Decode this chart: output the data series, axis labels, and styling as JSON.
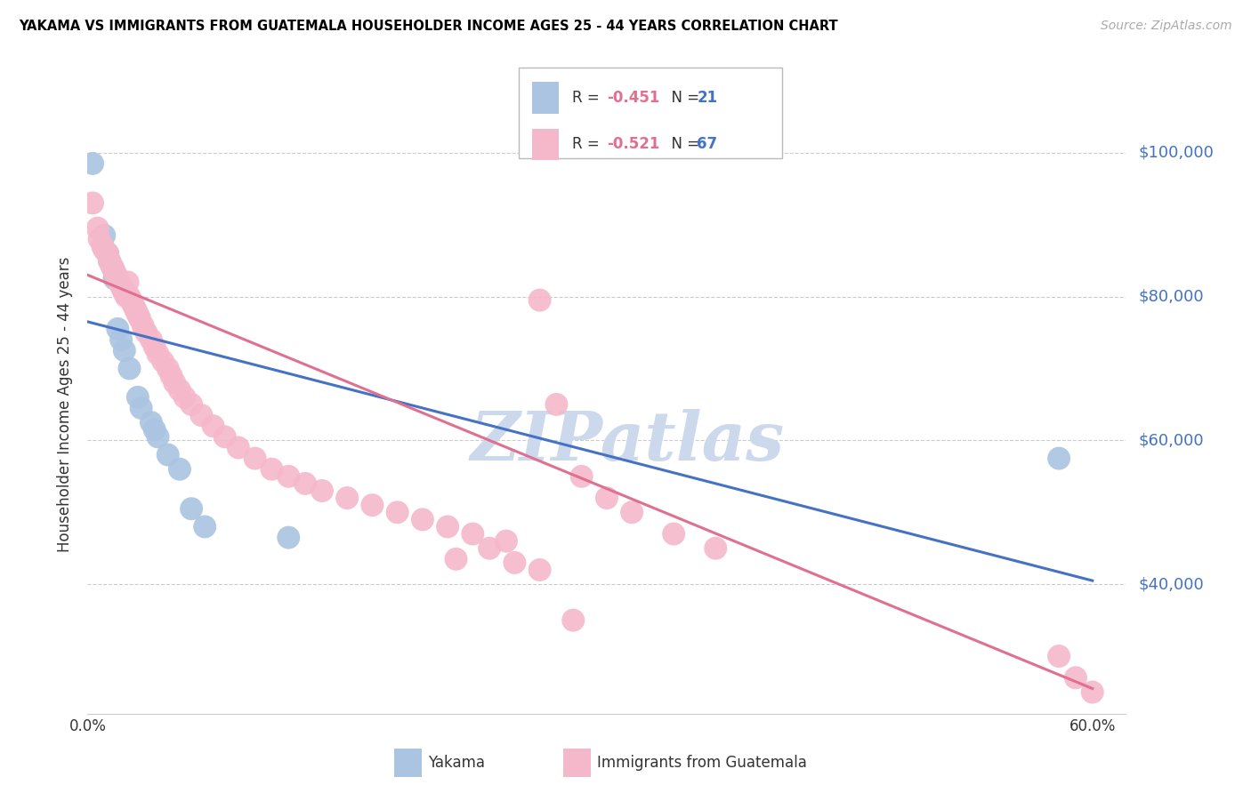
{
  "title": "YAKAMA VS IMMIGRANTS FROM GUATEMALA HOUSEHOLDER INCOME AGES 25 - 44 YEARS CORRELATION CHART",
  "source": "Source: ZipAtlas.com",
  "ylabel": "Householder Income Ages 25 - 44 years",
  "y_tick_labels": [
    "$100,000",
    "$80,000",
    "$60,000",
    "$40,000"
  ],
  "y_tick_values": [
    100000,
    80000,
    60000,
    40000
  ],
  "ylim": [
    22000,
    108000
  ],
  "xlim": [
    0.0,
    0.62
  ],
  "blue_color": "#aac4e2",
  "pink_color": "#f5b8cb",
  "blue_line_color": "#4472c4",
  "pink_line_color": "#e07090",
  "label_color": "#4472c4",
  "blue_scatter": [
    [
      0.003,
      98500
    ],
    [
      0.01,
      88500
    ],
    [
      0.012,
      86000
    ],
    [
      0.013,
      85000
    ],
    [
      0.015,
      84000
    ],
    [
      0.016,
      82500
    ],
    [
      0.018,
      75500
    ],
    [
      0.02,
      74000
    ],
    [
      0.022,
      72500
    ],
    [
      0.025,
      70000
    ],
    [
      0.03,
      66000
    ],
    [
      0.032,
      64500
    ],
    [
      0.038,
      62500
    ],
    [
      0.04,
      61500
    ],
    [
      0.042,
      60500
    ],
    [
      0.048,
      58000
    ],
    [
      0.055,
      56000
    ],
    [
      0.062,
      50500
    ],
    [
      0.07,
      48000
    ],
    [
      0.12,
      46500
    ],
    [
      0.58,
      57500
    ]
  ],
  "pink_scatter": [
    [
      0.003,
      93000
    ],
    [
      0.006,
      89500
    ],
    [
      0.007,
      88000
    ],
    [
      0.009,
      87000
    ],
    [
      0.01,
      86500
    ],
    [
      0.012,
      86000
    ],
    [
      0.013,
      85000
    ],
    [
      0.014,
      84500
    ],
    [
      0.015,
      84000
    ],
    [
      0.016,
      83500
    ],
    [
      0.017,
      83000
    ],
    [
      0.018,
      82500
    ],
    [
      0.019,
      82000
    ],
    [
      0.02,
      81500
    ],
    [
      0.021,
      81000
    ],
    [
      0.022,
      80500
    ],
    [
      0.023,
      80000
    ],
    [
      0.024,
      82000
    ],
    [
      0.025,
      80000
    ],
    [
      0.026,
      79500
    ],
    [
      0.027,
      79000
    ],
    [
      0.028,
      78500
    ],
    [
      0.029,
      78000
    ],
    [
      0.03,
      77500
    ],
    [
      0.031,
      77000
    ],
    [
      0.033,
      76000
    ],
    [
      0.035,
      75000
    ],
    [
      0.038,
      74000
    ],
    [
      0.04,
      73000
    ],
    [
      0.042,
      72000
    ],
    [
      0.045,
      71000
    ],
    [
      0.048,
      70000
    ],
    [
      0.05,
      69000
    ],
    [
      0.052,
      68000
    ],
    [
      0.055,
      67000
    ],
    [
      0.058,
      66000
    ],
    [
      0.062,
      65000
    ],
    [
      0.068,
      63500
    ],
    [
      0.075,
      62000
    ],
    [
      0.082,
      60500
    ],
    [
      0.09,
      59000
    ],
    [
      0.1,
      57500
    ],
    [
      0.11,
      56000
    ],
    [
      0.12,
      55000
    ],
    [
      0.13,
      54000
    ],
    [
      0.14,
      53000
    ],
    [
      0.155,
      52000
    ],
    [
      0.17,
      51000
    ],
    [
      0.185,
      50000
    ],
    [
      0.2,
      49000
    ],
    [
      0.215,
      48000
    ],
    [
      0.23,
      47000
    ],
    [
      0.25,
      46000
    ],
    [
      0.27,
      79500
    ],
    [
      0.28,
      65000
    ],
    [
      0.295,
      55000
    ],
    [
      0.31,
      52000
    ],
    [
      0.325,
      50000
    ],
    [
      0.35,
      47000
    ],
    [
      0.375,
      45000
    ],
    [
      0.24,
      45000
    ],
    [
      0.22,
      43500
    ],
    [
      0.255,
      43000
    ],
    [
      0.27,
      42000
    ],
    [
      0.29,
      35000
    ],
    [
      0.58,
      30000
    ],
    [
      0.59,
      27000
    ],
    [
      0.6,
      25000
    ]
  ],
  "blue_line": [
    [
      0.0,
      76500
    ],
    [
      0.6,
      40500
    ]
  ],
  "pink_line": [
    [
      0.0,
      83000
    ],
    [
      0.6,
      25500
    ]
  ],
  "watermark": "ZIPatlas",
  "watermark_color": "#ccd9ed",
  "background_color": "#ffffff",
  "grid_color": "#cccccc"
}
